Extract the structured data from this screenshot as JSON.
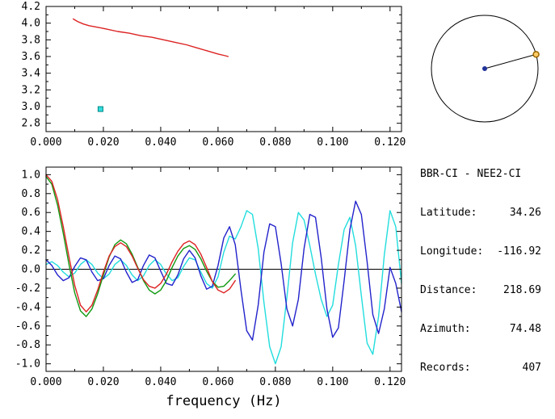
{
  "window": {
    "background": "#ffffff"
  },
  "info": {
    "station_pair": "BBR-CI - NEE2-CI",
    "fields": [
      {
        "label": "Latitude:",
        "value": "34.26"
      },
      {
        "label": "Longitude:",
        "value": "-116.92"
      },
      {
        "label": "Distance:",
        "value": "218.69"
      },
      {
        "label": "Azimuth:",
        "value": "74.48"
      },
      {
        "label": "Records:",
        "value": "407"
      }
    ]
  },
  "compass": {
    "azimuth_deg": 74.48,
    "circle_color": "#000000",
    "line_color": "#000000",
    "center_dot_color": "#223399",
    "end_marker_fill": "#ffcc66",
    "end_marker_stroke": "#996600"
  },
  "chart_data": [
    {
      "id": "top",
      "type": "line",
      "title": "",
      "xlabel": "",
      "ylabel": "",
      "xlim": [
        0,
        0.124
      ],
      "ylim": [
        2.7,
        4.2
      ],
      "xticks": [
        0.0,
        0.02,
        0.04,
        0.06,
        0.08,
        0.1,
        0.12
      ],
      "yticks": [
        2.8,
        3.0,
        3.2,
        3.4,
        3.6,
        3.8,
        4.0,
        4.2
      ],
      "xtick_decimals": 3,
      "ytick_decimals": 1,
      "zero_line": false,
      "series": [
        {
          "name": "group-velocity-curve",
          "color": "#dd2222",
          "x": [
            0.0095,
            0.011,
            0.013,
            0.015,
            0.018,
            0.021,
            0.025,
            0.029,
            0.033,
            0.037,
            0.041,
            0.045,
            0.049,
            0.053,
            0.057,
            0.06,
            0.0625,
            0.0635
          ],
          "y": [
            4.05,
            4.02,
            3.99,
            3.97,
            3.95,
            3.93,
            3.9,
            3.88,
            3.85,
            3.83,
            3.8,
            3.77,
            3.74,
            3.7,
            3.66,
            3.63,
            3.61,
            3.6
          ]
        }
      ],
      "markers": [
        {
          "name": "dispersion-pick-marker",
          "x": 0.019,
          "y": 2.97,
          "color": "#33dddd",
          "stroke": "#008888",
          "shape": "square"
        }
      ]
    },
    {
      "id": "bottom",
      "type": "line",
      "title": "",
      "xlabel": "frequency (Hz)",
      "ylabel": "",
      "xlim": [
        0,
        0.124
      ],
      "ylim": [
        -1.08,
        1.08
      ],
      "xticks": [
        0.0,
        0.02,
        0.04,
        0.06,
        0.08,
        0.1,
        0.12
      ],
      "yticks": [
        -1.0,
        -0.8,
        -0.6,
        -0.4,
        -0.2,
        0.0,
        0.2,
        0.4,
        0.6,
        0.8,
        1.0
      ],
      "xtick_decimals": 3,
      "ytick_decimals": 1,
      "zero_line": true,
      "series": [
        {
          "name": "cyan-waveform",
          "color": "#22dddd",
          "x0": 0,
          "dx": 0.002,
          "y": [
            0.05,
            0.08,
            0.04,
            -0.03,
            -0.08,
            -0.04,
            0.05,
            0.1,
            0.05,
            -0.04,
            -0.1,
            -0.05,
            0.05,
            0.1,
            0.04,
            -0.06,
            -0.12,
            -0.07,
            0.04,
            0.1,
            0.05,
            -0.05,
            -0.12,
            -0.09,
            0.03,
            0.12,
            0.1,
            -0.03,
            -0.15,
            -0.2,
            -0.08,
            0.18,
            0.35,
            0.32,
            0.45,
            0.62,
            0.58,
            0.22,
            -0.35,
            -0.82,
            -1.0,
            -0.82,
            -0.3,
            0.28,
            0.6,
            0.52,
            0.25,
            -0.05,
            -0.32,
            -0.5,
            -0.38,
            0.05,
            0.42,
            0.55,
            0.25,
            -0.28,
            -0.78,
            -0.9,
            -0.5,
            0.15,
            0.62,
            0.45,
            -0.15
          ]
        },
        {
          "name": "blue-waveform",
          "color": "#2222cc",
          "x0": 0,
          "dx": 0.002,
          "y": [
            0.1,
            0.04,
            -0.06,
            -0.12,
            -0.09,
            0.03,
            0.12,
            0.1,
            -0.03,
            -0.12,
            -0.1,
            0.04,
            0.14,
            0.11,
            -0.03,
            -0.14,
            -0.11,
            0.04,
            0.15,
            0.12,
            -0.02,
            -0.15,
            -0.17,
            -0.06,
            0.11,
            0.2,
            0.12,
            -0.07,
            -0.21,
            -0.18,
            0.04,
            0.33,
            0.45,
            0.26,
            -0.22,
            -0.65,
            -0.75,
            -0.38,
            0.18,
            0.48,
            0.45,
            0.06,
            -0.42,
            -0.6,
            -0.32,
            0.22,
            0.58,
            0.55,
            0.12,
            -0.42,
            -0.72,
            -0.62,
            -0.12,
            0.42,
            0.72,
            0.58,
            0.08,
            -0.48,
            -0.68,
            -0.42,
            0.02,
            -0.15,
            -0.45
          ]
        },
        {
          "name": "green-waveform",
          "color": "#119911",
          "x0": 0,
          "dx": 0.002,
          "y": [
            0.98,
            0.9,
            0.68,
            0.38,
            0.05,
            -0.25,
            -0.44,
            -0.5,
            -0.42,
            -0.26,
            -0.06,
            0.13,
            0.26,
            0.31,
            0.27,
            0.16,
            0.02,
            -0.12,
            -0.22,
            -0.26,
            -0.22,
            -0.12,
            0.02,
            0.14,
            0.22,
            0.25,
            0.21,
            0.11,
            -0.02,
            -0.13,
            -0.19,
            -0.18,
            -0.12,
            -0.05
          ]
        },
        {
          "name": "red-waveform",
          "color": "#dd2222",
          "x0": 0,
          "dx": 0.002,
          "y": [
            1.0,
            0.93,
            0.74,
            0.45,
            0.13,
            -0.17,
            -0.38,
            -0.45,
            -0.38,
            -0.22,
            -0.03,
            0.14,
            0.24,
            0.28,
            0.24,
            0.14,
            0.01,
            -0.11,
            -0.18,
            -0.2,
            -0.15,
            -0.05,
            0.08,
            0.19,
            0.27,
            0.3,
            0.26,
            0.16,
            0.02,
            -0.13,
            -0.22,
            -0.25,
            -0.21,
            -0.12
          ]
        }
      ],
      "markers": []
    }
  ]
}
